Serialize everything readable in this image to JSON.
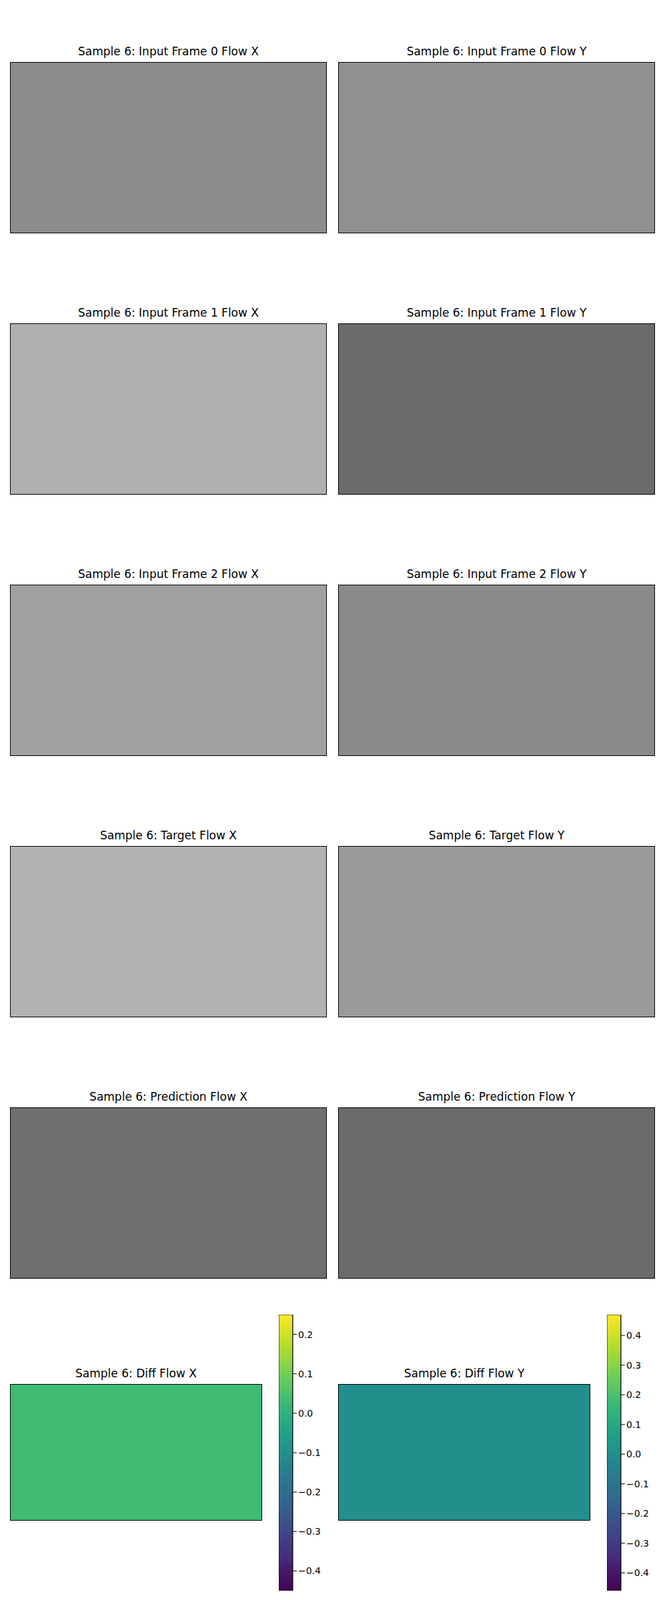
{
  "chart_data": [
    {
      "type": "image",
      "title": "Sample 6: Input Frame 0 Flow X",
      "color": "#8c8c8c"
    },
    {
      "type": "image",
      "title": "Sample 6: Input Frame 0 Flow Y",
      "color": "#909090"
    },
    {
      "type": "image",
      "title": "Sample 6: Input Frame 1 Flow X",
      "color": "#b0b0b0"
    },
    {
      "type": "image",
      "title": "Sample 6: Input Frame 1 Flow Y",
      "color": "#6b6b6b"
    },
    {
      "type": "image",
      "title": "Sample 6: Input Frame 2 Flow X",
      "color": "#a0a0a0"
    },
    {
      "type": "image",
      "title": "Sample 6: Input Frame 2 Flow Y",
      "color": "#8a8a8a"
    },
    {
      "type": "image",
      "title": "Sample 6: Target Flow X",
      "color": "#b2b2b2"
    },
    {
      "type": "image",
      "title": "Sample 6: Target Flow Y",
      "color": "#9a9a9a"
    },
    {
      "type": "image",
      "title": "Sample 6: Prediction Flow X",
      "color": "#6f6f6f"
    },
    {
      "type": "image",
      "title": "Sample 6: Prediction Flow Y",
      "color": "#6a6a6a"
    },
    {
      "type": "heatmap",
      "title": "Sample 6: Diff Flow X",
      "cells": [
        [
          0.03
        ]
      ],
      "colorbar_lim": [
        -0.45,
        0.25
      ],
      "colorbar_ticks": [
        {
          "value": -0.4,
          "label": "−0.4"
        },
        {
          "value": -0.3,
          "label": "−0.3"
        },
        {
          "value": -0.2,
          "label": "−0.2"
        },
        {
          "value": -0.1,
          "label": "−0.1"
        },
        {
          "value": 0.0,
          "label": "0.0"
        },
        {
          "value": 0.1,
          "label": "0.1"
        },
        {
          "value": 0.2,
          "label": "0.2"
        }
      ]
    },
    {
      "type": "heatmap",
      "title": "Sample 6: Diff Flow Y",
      "cells": [
        [
          0.0
        ]
      ],
      "colorbar_lim": [
        -0.46,
        0.47
      ],
      "colorbar_ticks": [
        {
          "value": -0.4,
          "label": "−0.4"
        },
        {
          "value": -0.3,
          "label": "−0.3"
        },
        {
          "value": -0.2,
          "label": "−0.2"
        },
        {
          "value": -0.1,
          "label": "−0.1"
        },
        {
          "value": 0.0,
          "label": "0.0"
        },
        {
          "value": 0.1,
          "label": "0.1"
        },
        {
          "value": 0.2,
          "label": "0.2"
        },
        {
          "value": 0.3,
          "label": "0.3"
        },
        {
          "value": 0.4,
          "label": "0.4"
        }
      ]
    }
  ]
}
